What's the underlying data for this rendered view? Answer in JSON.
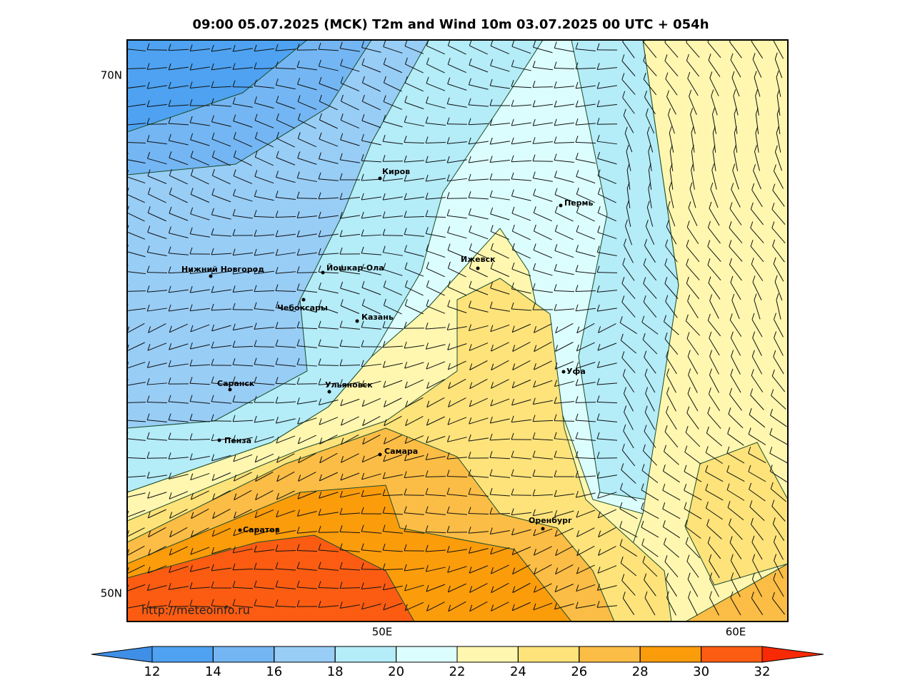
{
  "header": {
    "title": "09:00 05.07.2025 (MCK) T2m and Wind 10m 03.07.2025 00 UTC + 054h"
  },
  "map": {
    "lat_labels": [
      "70N",
      "50N"
    ],
    "lon_labels": [
      "50E",
      "60E"
    ],
    "watermark": "http://meteoinfo.ru",
    "cities": [
      "Киров",
      "Пермь",
      "Нижний Новгород",
      "Йошкар-Ола",
      "Ижевск",
      "Чебоксары",
      "Казань",
      "Уфа",
      "Саранск",
      "Ульяновск",
      "Пенза",
      "Самара",
      "Оренбург",
      "Саратов"
    ]
  },
  "colorbar": {
    "ticks": [
      12,
      14,
      16,
      18,
      20,
      22,
      24,
      26,
      28,
      30,
      32
    ],
    "colors": [
      "#3f8fe6",
      "#4ea2f1",
      "#74b6f3",
      "#98cdf6",
      "#b4ecf8",
      "#dcfdfe",
      "#fff7b0",
      "#fde37a",
      "#fbbd45",
      "#fb9c0b",
      "#fb5c12",
      "#f82a05"
    ]
  }
}
